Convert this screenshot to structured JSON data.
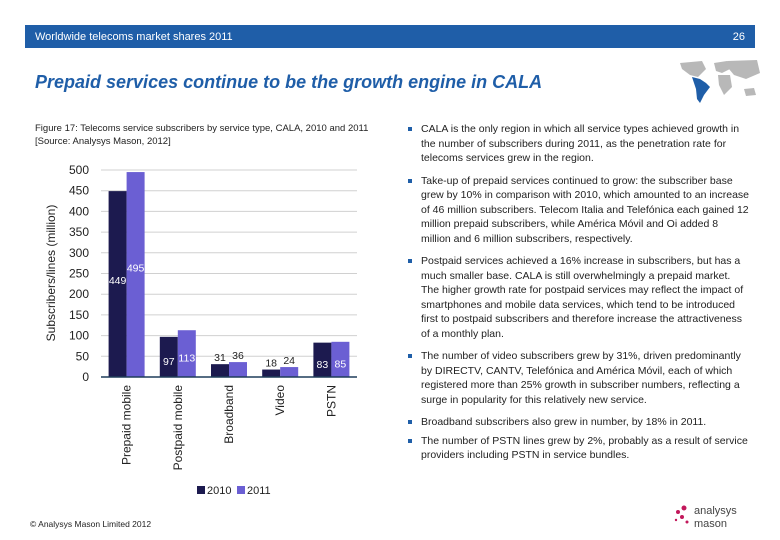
{
  "header": {
    "title": "Worldwide telecoms market shares 2011",
    "page": "26"
  },
  "slide_title": "Prepaid services continue to be the growth engine in CALA",
  "figure_caption": "Figure 17: Telecoms service subscribers by service type, CALA, 2010 and 2011 [Source: Analysys Mason, 2012]",
  "bullets": [
    "CALA is the only region in which all service types achieved growth in the number of subscribers during 2011, as the penetration rate for telecoms services grew in the region.",
    "Take-up of prepaid services continued to grow: the subscriber base grew by 10% in comparison with 2010, which amounted to an increase of 46 million subscribers. Telecom Italia and Telefónica each gained 12 million prepaid subscribers, while América Móvil and Oi added 8 million and 6 million subscribers, respectively.",
    "Postpaid services achieved a 16% increase in subscribers, but has a much smaller base. CALA is still overwhelmingly a prepaid market. The higher growth rate for postpaid services may reflect the impact of smartphones and mobile data services, which tend to be introduced first to postpaid subscribers and therefore increase the attractiveness of a monthly plan.",
    "The number of video subscribers grew by 31%, driven predominantly by DIRECTV, CANTV, Telefónica and América Móvil, each of which registered more than 25% growth in subscriber numbers, reflecting a surge in popularity for this relatively new service.",
    "Broadband subscribers also grew in number, by 18% in 2011.",
    "The number of PSTN lines grew by 2%, probably as a result of service providers including PSTN in service bundles."
  ],
  "footer": "© Analysys Mason Limited 2012",
  "logo_text": "analysys mason",
  "colors": {
    "header": "#1f5ea8",
    "s2010": "#1c1a4f",
    "s2011": "#6b5fd3",
    "map_highlight": "#1f5ea8",
    "map_base": "#b8b8b8"
  },
  "chart_data": {
    "type": "bar",
    "categories": [
      "Prepaid mobile",
      "Postpaid mobile",
      "Broadband",
      "Video",
      "PSTN"
    ],
    "series": [
      {
        "name": "2010",
        "values": [
          449,
          97,
          31,
          18,
          83
        ]
      },
      {
        "name": "2011",
        "values": [
          495,
          113,
          36,
          24,
          85
        ]
      }
    ],
    "ylabel": "Subscribers/lines (million)",
    "ylim": [
      0,
      500
    ],
    "yticks": [
      "0",
      "50",
      "100",
      "150",
      "200",
      "250",
      "300",
      "350",
      "400",
      "450",
      "500"
    ],
    "grid": true,
    "legend": "bottom"
  }
}
